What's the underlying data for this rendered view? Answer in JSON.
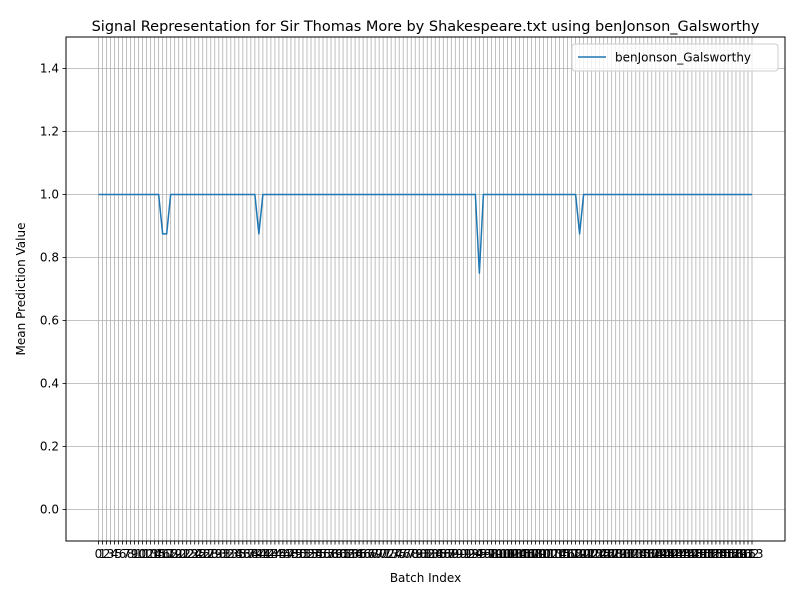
{
  "chart_data": {
    "type": "line",
    "title": "Signal Representation for Sir Thomas More by Shakespeare.txt using benJonson_Galsworthy",
    "xlabel": "Batch Index",
    "ylabel": "Mean Prediction Value",
    "xlim": [
      0,
      163
    ],
    "ylim": [
      -0.1,
      1.5
    ],
    "yticks": [
      "0.0",
      "0.2",
      "0.4",
      "0.6",
      "0.8",
      "1.0",
      "1.2",
      "1.4"
    ],
    "ytick_values": [
      0.0,
      0.2,
      0.4,
      0.6,
      0.8,
      1.0,
      1.2,
      1.4
    ],
    "x_tick_note": "Ticks drawn at every integer batch index 0..163; labels overlap in the original.",
    "grid": true,
    "legend": "top-right",
    "series": [
      {
        "name": "benJonson_Galsworthy",
        "color": "#1f77b4",
        "x": [
          0,
          15,
          16,
          17,
          18,
          39,
          40,
          41,
          94,
          95,
          96,
          119,
          120,
          121,
          163
        ],
        "y": [
          1.0,
          1.0,
          0.875,
          0.875,
          1.0,
          1.0,
          0.875,
          1.0,
          1.0,
          0.75,
          1.0,
          1.0,
          0.875,
          1.0,
          1.0
        ]
      }
    ]
  }
}
